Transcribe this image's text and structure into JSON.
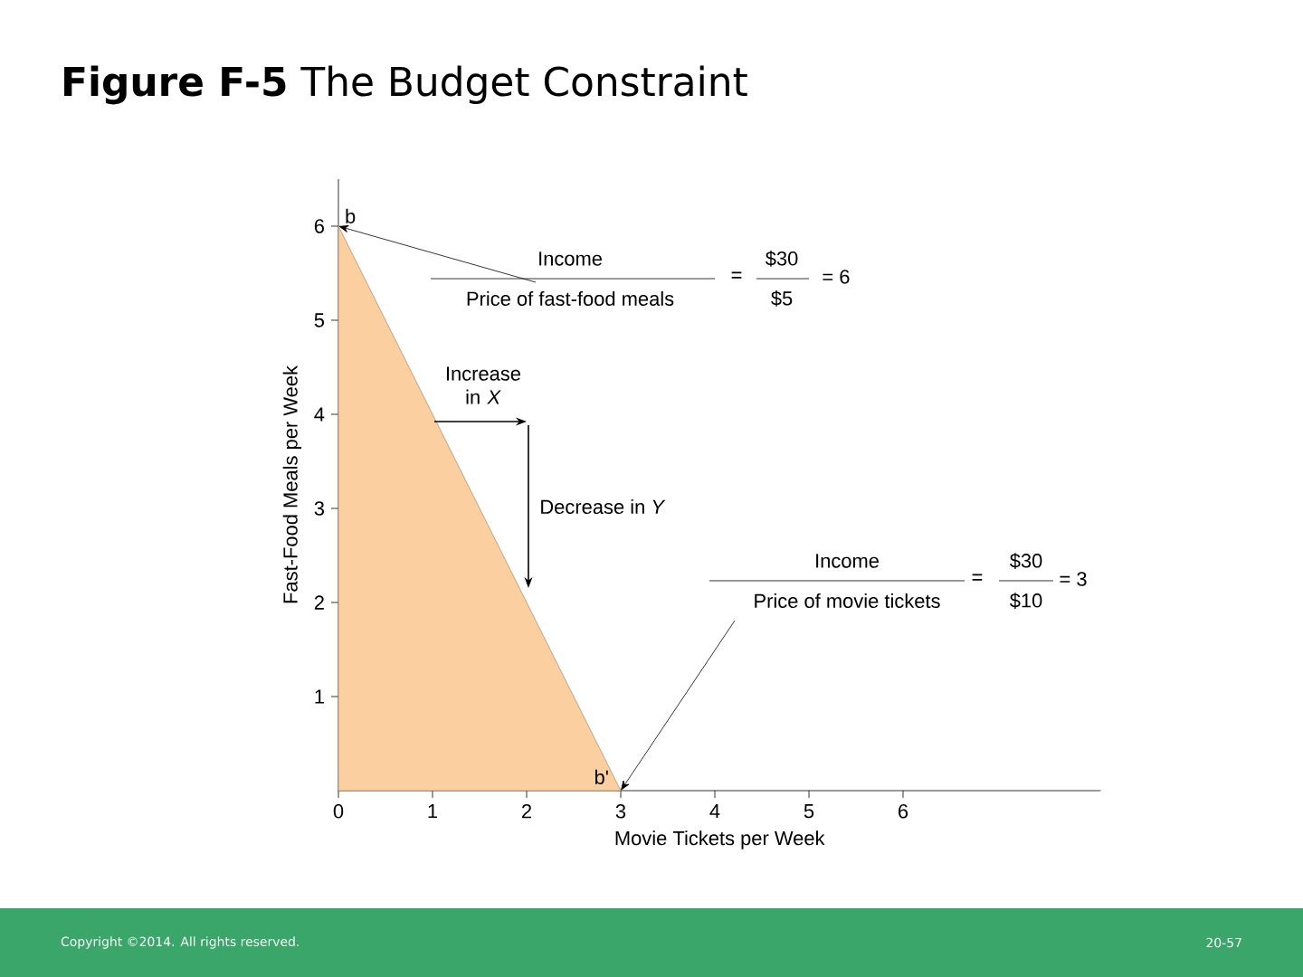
{
  "chart_data": {
    "type": "area",
    "title": "**Figure F-5** The Budget Constraint",
    "xlabel": "Movie Tickets per Week",
    "ylabel": "Fast-Food Meals per Week",
    "x": [
      0,
      3
    ],
    "values": [
      6,
      0
    ],
    "color": "#fbcf9f",
    "xlim": [
      0,
      8.1
    ],
    "ylim": [
      0,
      6.5
    ],
    "xticks": [
      0,
      1,
      2,
      3,
      4,
      5,
      6
    ],
    "yticks": [
      1,
      2,
      3,
      4,
      5,
      6
    ],
    "annotations": [
      "b",
      "b'",
      {
        "text": "Income",
        "x": 0,
        "y": 6
      },
      "Price of fast-food meals",
      "=",
      "$30",
      "$5",
      "= 6",
      "Increase in *X*",
      "Decrease in *Y*",
      "Income",
      {
        "text": "Price of movie tickets",
        "x": 3,
        "y": 0
      },
      "=",
      "$30",
      "$10",
      "= 3",
      "Copyright ©2014. All rights reserved.",
      "20-57"
    ]
  }
}
